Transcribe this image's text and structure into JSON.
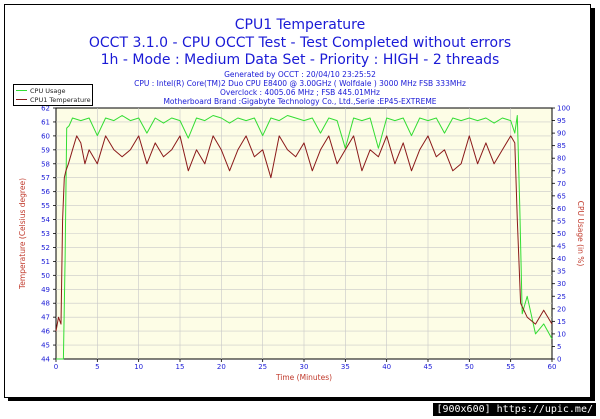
{
  "titles": {
    "line1": "CPU1 Temperature",
    "line2": "OCCT 3.1.0 - CPU OCCT Test - Test Completed without errors",
    "line3": "1h - Mode : Medium Data Set - Priority : HIGH - 2 threads"
  },
  "info": {
    "generated": "Generated by OCCT : 20/04/10 23:25:52",
    "cpu": "CPU : Intel(R) Core(TM)2 Duo CPU E8400 @ 3.00GHz ( Wolfdale ) 3000 MHz FSB 333MHz",
    "overclock": "Overclock : 4005.06 MHz ; FSB 445.01MHz",
    "motherboard": "Motherboard Brand :Gigabyte Technology Co., Ltd.,Serie :EP45-EXTREME"
  },
  "footer": "[900x600] https://upic.me/",
  "colors": {
    "temperature": "#8b1a1a",
    "cpu_usage": "#33dd33",
    "axis_text": "#1a1ad6",
    "right_axis_text": "#c0392b",
    "plot_bg": "#fdfde6"
  },
  "chart_data": {
    "type": "line",
    "xlabel": "Time (Minutes)",
    "ylabel_left": "Temperature (Celsius degree)",
    "ylabel_right": "CPU Usage (in %)",
    "xlim": [
      0,
      60
    ],
    "ylim_left": [
      44,
      62
    ],
    "ylim_right": [
      0,
      100
    ],
    "x_ticks": [
      0,
      5,
      10,
      15,
      20,
      25,
      30,
      35,
      40,
      45,
      50,
      55,
      60
    ],
    "y_ticks_left": [
      44,
      45,
      46,
      47,
      48,
      49,
      50,
      51,
      52,
      53,
      54,
      55,
      56,
      57,
      58,
      59,
      60,
      61,
      62
    ],
    "y_ticks_right": [
      0,
      5,
      10,
      15,
      20,
      25,
      30,
      35,
      40,
      45,
      50,
      55,
      60,
      65,
      70,
      75,
      80,
      85,
      90,
      95,
      100
    ],
    "grid": true,
    "legend": "top-left",
    "series": [
      {
        "name": "CPU Usage",
        "axis": "right",
        "x": [
          0,
          0.6,
          0.9,
          1.1,
          1.3,
          1.6,
          2,
          3,
          4,
          5,
          6,
          7,
          8,
          9,
          10,
          11,
          12,
          13,
          14,
          15,
          16,
          17,
          18,
          19,
          20,
          21,
          22,
          23,
          24,
          25,
          26,
          27,
          28,
          29,
          30,
          31,
          32,
          33,
          34,
          35,
          36,
          37,
          38,
          39,
          40,
          41,
          42,
          43,
          44,
          45,
          46,
          47,
          48,
          49,
          50,
          51,
          52,
          53,
          54,
          55,
          55.5,
          55.8,
          56.1,
          56.4,
          57,
          58,
          59,
          60
        ],
        "y": [
          0,
          0,
          0,
          40,
          92,
          93,
          96,
          95,
          96,
          89,
          96,
          95,
          97,
          95,
          96,
          90,
          96,
          94,
          96,
          95,
          88,
          96,
          95,
          97,
          96,
          94,
          96,
          95,
          96,
          89,
          96,
          95,
          97,
          96,
          95,
          96,
          90,
          96,
          95,
          84,
          96,
          95,
          96,
          84,
          96,
          95,
          96,
          89,
          96,
          95,
          96,
          90,
          96,
          95,
          96,
          95,
          96,
          94,
          96,
          95,
          90,
          97,
          60,
          18,
          25,
          10,
          14,
          8
        ]
      },
      {
        "name": "CPU1 Temperature",
        "axis": "left",
        "x": [
          0,
          0.3,
          0.6,
          0.8,
          1.0,
          1.2,
          1.5,
          2,
          2.5,
          3,
          3.5,
          4,
          5,
          6,
          7,
          8,
          9,
          10,
          11,
          12,
          13,
          14,
          15,
          16,
          17,
          18,
          19,
          20,
          21,
          22,
          23,
          24,
          25,
          26,
          27,
          28,
          29,
          30,
          31,
          32,
          33,
          34,
          35,
          36,
          37,
          38,
          39,
          40,
          41,
          42,
          43,
          44,
          45,
          46,
          47,
          48,
          49,
          50,
          51,
          52,
          53,
          54,
          55,
          55.5,
          55.8,
          56.2,
          57,
          58,
          59,
          60
        ],
        "y": [
          46,
          47,
          46.5,
          54,
          57,
          57.5,
          58,
          59,
          60,
          59.5,
          58,
          59,
          58,
          60,
          59,
          58.5,
          59,
          60,
          58,
          59.5,
          58.5,
          59,
          60,
          57.5,
          59,
          58,
          60,
          59,
          57.5,
          59,
          60,
          58.5,
          59,
          57,
          60,
          59,
          58.5,
          59.5,
          57.5,
          59,
          60,
          58,
          59,
          60,
          57.5,
          59,
          58.5,
          60,
          58,
          59.5,
          57.5,
          59,
          60,
          58.5,
          59,
          57.5,
          58,
          60,
          58,
          59.5,
          58,
          59,
          60,
          59.5,
          54,
          48,
          47,
          46.5,
          47.5,
          46.5
        ]
      }
    ]
  }
}
